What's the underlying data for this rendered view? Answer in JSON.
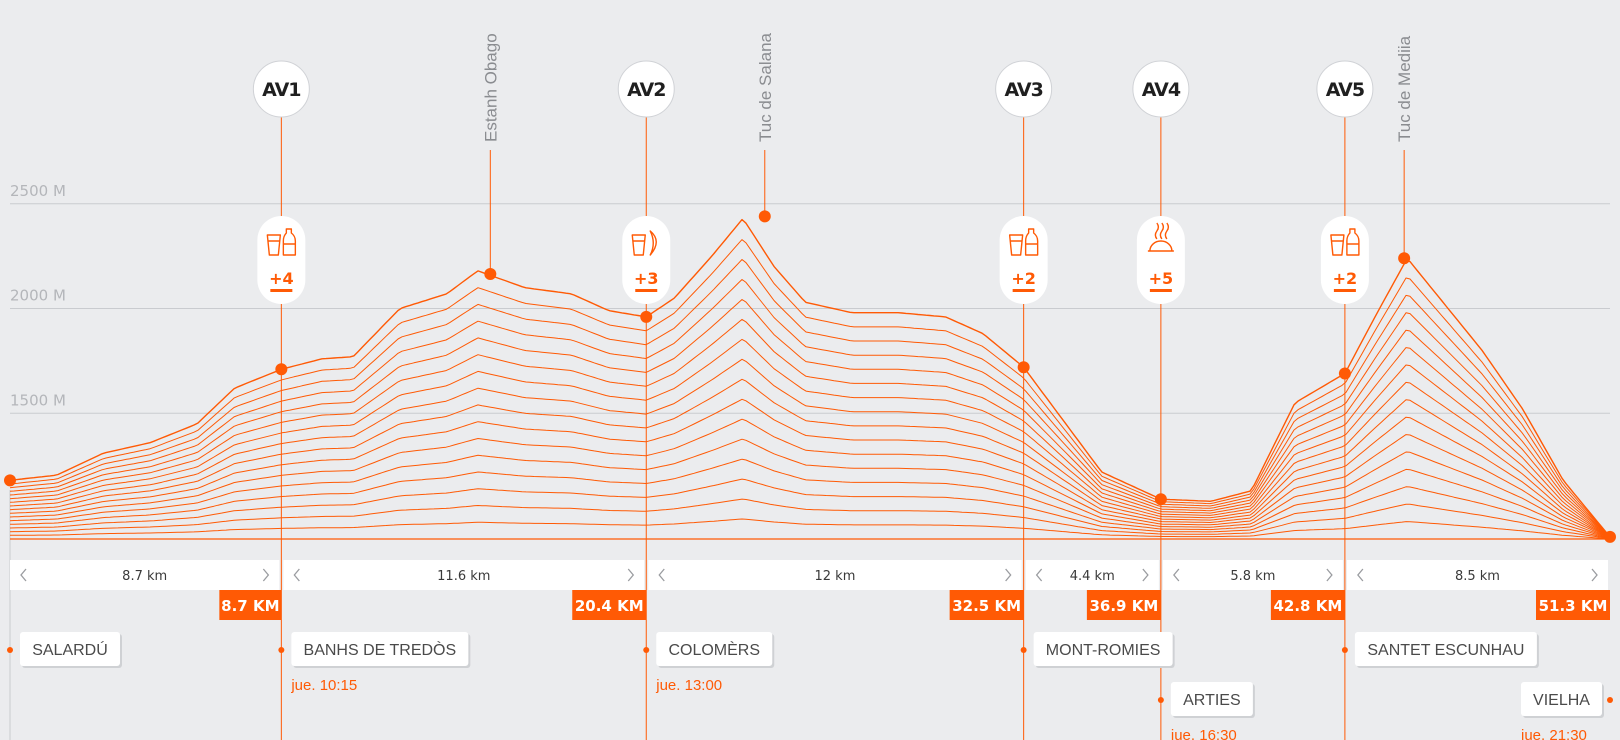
{
  "colors": {
    "accent": "#ff5a05",
    "background": "#ebecee",
    "grid": "#c9cbcf",
    "label_gray": "#b4b6ba"
  },
  "chart_data": {
    "type": "area",
    "xlim": [
      0,
      51.3
    ],
    "ylim": [
      900,
      2900
    ],
    "yticks": [
      {
        "value": 2500,
        "label": "2500 M"
      },
      {
        "value": 2000,
        "label": "2000 M"
      },
      {
        "value": 1500,
        "label": "1500 M"
      }
    ],
    "profile": {
      "x": [
        0,
        1.5,
        3,
        4.5,
        6,
        7.2,
        8.7,
        10,
        11,
        12.5,
        14,
        15,
        16.5,
        18,
        19.2,
        20.4,
        21.3,
        22.5,
        23.5,
        24.5,
        25.5,
        27,
        28.5,
        30,
        31.2,
        32.5,
        33.5,
        35,
        36.9,
        38.5,
        39.8,
        41.2,
        42.8,
        43.8,
        44.8,
        46,
        47.2,
        48.5,
        49.8,
        51.3
      ],
      "y": [
        1180,
        1205,
        1310,
        1360,
        1450,
        1620,
        1710,
        1760,
        1770,
        2000,
        2070,
        2180,
        2100,
        2070,
        1990,
        1960,
        2050,
        2250,
        2430,
        2200,
        2030,
        1980,
        1980,
        1960,
        1880,
        1720,
        1520,
        1220,
        1090,
        1080,
        1130,
        1550,
        1690,
        1970,
        2240,
        2020,
        1800,
        1520,
        1180,
        910
      ]
    },
    "aid_stations": [
      {
        "code": "AV1",
        "km": 8.7,
        "elev": 1710,
        "icon": "cup-bottle-icon",
        "count": "+4"
      },
      {
        "code": "AV2",
        "km": 20.4,
        "elev": 1960,
        "icon": "cup-banana-icon",
        "count": "+3"
      },
      {
        "code": "AV3",
        "km": 32.5,
        "elev": 1720,
        "icon": "cup-bottle-icon",
        "count": "+2"
      },
      {
        "code": "AV4",
        "km": 36.9,
        "elev": 1090,
        "icon": "hot-meal-icon",
        "count": "+5"
      },
      {
        "code": "AV5",
        "km": 42.8,
        "elev": 1690,
        "icon": "cup-bottle-icon",
        "count": "+2"
      }
    ],
    "peaks": [
      {
        "name": "Estanh Obago",
        "km": 15.4,
        "elev": 2165
      },
      {
        "name": "Tuc de Salana",
        "km": 24.2,
        "elev": 2440
      },
      {
        "name": "Tuc de Mediia",
        "km": 44.7,
        "elev": 2240
      }
    ],
    "endpoints": [
      {
        "km": 0,
        "elev": 1180
      },
      {
        "km": 51.3,
        "elev": 910
      }
    ],
    "segments": [
      {
        "label": "8.7 km",
        "from": 0,
        "to": 8.7
      },
      {
        "label": "11.6 km",
        "from": 8.7,
        "to": 20.4
      },
      {
        "label": "12 km",
        "from": 20.4,
        "to": 32.5
      },
      {
        "label": "4.4 km",
        "from": 32.5,
        "to": 36.9
      },
      {
        "label": "5.8 km",
        "from": 36.9,
        "to": 42.8
      },
      {
        "label": "8.5 km",
        "from": 42.8,
        "to": 51.3
      }
    ],
    "km_markers": [
      {
        "label": "8.7 KM",
        "km": 8.7
      },
      {
        "label": "20.4 KM",
        "km": 20.4
      },
      {
        "label": "32.5 KM",
        "km": 32.5
      },
      {
        "label": "36.9 KM",
        "km": 36.9
      },
      {
        "label": "42.8 KM",
        "km": 42.8
      },
      {
        "label": "51.3 KM",
        "km": 51.3
      }
    ],
    "places": [
      {
        "name": "SALARDÚ",
        "km": 0,
        "row": 1,
        "align": "right",
        "time": ""
      },
      {
        "name": "BANHS DE TREDÒS",
        "km": 8.7,
        "row": 1,
        "align": "right",
        "time": "jue. 10:15"
      },
      {
        "name": "COLOMÈRS",
        "km": 20.4,
        "row": 1,
        "align": "right",
        "time": "jue. 13:00"
      },
      {
        "name": "MONT-ROMIES",
        "km": 32.5,
        "row": 1,
        "align": "right",
        "time": ""
      },
      {
        "name": "ARTIES",
        "km": 36.9,
        "row": 2,
        "align": "right",
        "time": "jue. 16:30"
      },
      {
        "name": "SANTET ESCUNHAU",
        "km": 42.8,
        "row": 1,
        "align": "right",
        "time": ""
      },
      {
        "name": "VIELHA",
        "km": 51.3,
        "row": 2,
        "align": "left",
        "time": "jue. 21:30"
      }
    ]
  }
}
